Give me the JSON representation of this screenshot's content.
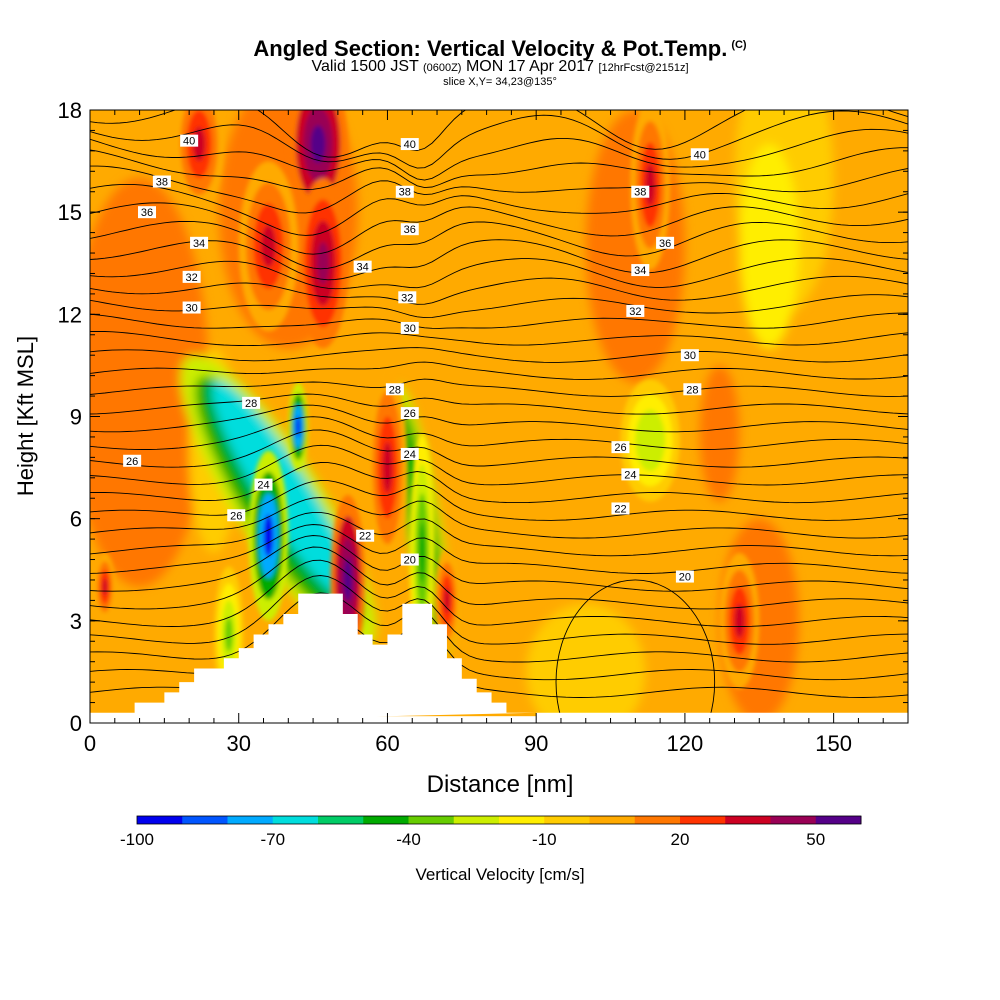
{
  "title": "Angled Section: Vertical Velocity & Pot.Temp.",
  "copyright": "(C)",
  "subtitle": {
    "valid": "Valid 1500 JST",
    "utc": "(0600Z)",
    "date": "MON 17 Apr 2017",
    "fcst": "[12hrFcst@2151z]"
  },
  "slice": "slice X,Y= 34,23@135°",
  "colorbar_label": "Vertical Velocity [cm/s]",
  "colorbar_ticks": [
    "-100",
    "-70",
    "-40",
    "-10",
    "20",
    "50"
  ],
  "colors": {
    "bins": [
      "#0000ee",
      "#0055ff",
      "#00aaff",
      "#00dddd",
      "#00cc66",
      "#00aa00",
      "#66cc00",
      "#ccee00",
      "#ffee00",
      "#ffcc00",
      "#ffaa00",
      "#ff7700",
      "#ff3300",
      "#cc0022",
      "#990055",
      "#550088"
    ]
  },
  "chart_data": {
    "type": "heatmap",
    "title": "Angled Section: Vertical Velocity & Pot.Temp.",
    "xlabel": "Distance [nm]",
    "ylabel": "Height [Kft MSL]",
    "xlim": [
      0,
      165
    ],
    "ylim": [
      0,
      18
    ],
    "xticks": [
      "0",
      "30",
      "60",
      "90",
      "120",
      "150"
    ],
    "yticks": [
      "0",
      "3",
      "6",
      "9",
      "12",
      "15",
      "18"
    ],
    "colorbar": {
      "label": "Vertical Velocity [cm/s]",
      "min": -100,
      "max": 60,
      "step": 10,
      "tick_labels": [
        "-100",
        "-70",
        "-40",
        "-10",
        "20",
        "50"
      ]
    },
    "updrafts": [
      {
        "x": 46,
        "y": 17,
        "w": 6,
        "h": 2.2,
        "value": 60
      },
      {
        "x": 47,
        "y": 13.5,
        "w": 5,
        "h": 2.5,
        "value": 40
      },
      {
        "x": 52,
        "y": 4.2,
        "w": 3.5,
        "h": 2.5,
        "value": 60
      },
      {
        "x": 60,
        "y": 7.5,
        "w": 4,
        "h": 3,
        "value": 30
      },
      {
        "x": 72,
        "y": 3.6,
        "w": 2.5,
        "h": 1.5,
        "value": 30
      },
      {
        "x": 113,
        "y": 15.8,
        "w": 4,
        "h": 2.5,
        "value": 30
      },
      {
        "x": 131,
        "y": 3,
        "w": 4,
        "h": 2,
        "value": 30
      },
      {
        "x": 22,
        "y": 17,
        "w": 5,
        "h": 2,
        "value": 30
      },
      {
        "x": 36,
        "y": 14,
        "w": 6,
        "h": 2.5,
        "value": 30
      },
      {
        "x": 3,
        "y": 4,
        "w": 2,
        "h": 1,
        "value": 30
      }
    ],
    "downdrafts": [
      {
        "x": 36,
        "y": 5.5,
        "w": 4,
        "h": 2.5,
        "value": -100
      },
      {
        "x": 42,
        "y": 8.7,
        "w": 2,
        "h": 1.3,
        "value": -100
      },
      {
        "x": 67,
        "y": 5,
        "w": 2.5,
        "h": 3.5,
        "value": -50
      },
      {
        "x": 113,
        "y": 8.3,
        "w": 6,
        "h": 1.8,
        "value": -30
      },
      {
        "x": 28,
        "y": 2.6,
        "w": 3,
        "h": 2,
        "value": -40
      }
    ],
    "contour_labels": [
      {
        "x": 20,
        "y": 17.1,
        "text": "40"
      },
      {
        "x": 64.5,
        "y": 17.0,
        "text": "40"
      },
      {
        "x": 123,
        "y": 16.7,
        "text": "40"
      },
      {
        "x": 14.5,
        "y": 15.9,
        "text": "38"
      },
      {
        "x": 63.5,
        "y": 15.6,
        "text": "38"
      },
      {
        "x": 111,
        "y": 15.6,
        "text": "38"
      },
      {
        "x": 11.5,
        "y": 15.0,
        "text": "36"
      },
      {
        "x": 64.5,
        "y": 14.5,
        "text": "36"
      },
      {
        "x": 116,
        "y": 14.1,
        "text": "36"
      },
      {
        "x": 22,
        "y": 14.1,
        "text": "34"
      },
      {
        "x": 55,
        "y": 13.4,
        "text": "34"
      },
      {
        "x": 111,
        "y": 13.3,
        "text": "34"
      },
      {
        "x": 20.5,
        "y": 13.1,
        "text": "32"
      },
      {
        "x": 64,
        "y": 12.5,
        "text": "32"
      },
      {
        "x": 110,
        "y": 12.1,
        "text": "32"
      },
      {
        "x": 20.5,
        "y": 12.2,
        "text": "30"
      },
      {
        "x": 64.5,
        "y": 11.6,
        "text": "30"
      },
      {
        "x": 121,
        "y": 10.8,
        "text": "30"
      },
      {
        "x": 61.5,
        "y": 9.8,
        "text": "28"
      },
      {
        "x": 121.5,
        "y": 9.8,
        "text": "28"
      },
      {
        "x": 32.5,
        "y": 9.4,
        "text": "28"
      },
      {
        "x": 64.5,
        "y": 9.1,
        "text": "26"
      },
      {
        "x": 8.5,
        "y": 7.7,
        "text": "26"
      },
      {
        "x": 107,
        "y": 8.1,
        "text": "26"
      },
      {
        "x": 64.5,
        "y": 7.9,
        "text": "24"
      },
      {
        "x": 35,
        "y": 7.0,
        "text": "24"
      },
      {
        "x": 109,
        "y": 7.3,
        "text": "24"
      },
      {
        "x": 29.5,
        "y": 6.1,
        "text": "26"
      },
      {
        "x": 55.5,
        "y": 5.5,
        "text": "22"
      },
      {
        "x": 107,
        "y": 6.3,
        "text": "22"
      },
      {
        "x": 64.5,
        "y": 4.8,
        "text": "20"
      },
      {
        "x": 120,
        "y": 4.3,
        "text": "20"
      }
    ],
    "terrain": [
      [
        0,
        0.3
      ],
      [
        9,
        0.3
      ],
      [
        9,
        0.6
      ],
      [
        15,
        0.6
      ],
      [
        15,
        0.9
      ],
      [
        18,
        0.9
      ],
      [
        18,
        1.2
      ],
      [
        21,
        1.2
      ],
      [
        21,
        1.6
      ],
      [
        27,
        1.6
      ],
      [
        27,
        1.9
      ],
      [
        30,
        1.9
      ],
      [
        30,
        2.2
      ],
      [
        33,
        2.2
      ],
      [
        33,
        2.6
      ],
      [
        36,
        2.6
      ],
      [
        36,
        2.9
      ],
      [
        39,
        2.9
      ],
      [
        39,
        3.2
      ],
      [
        42,
        3.2
      ],
      [
        42,
        3.8
      ],
      [
        51,
        3.8
      ],
      [
        51,
        3.2
      ],
      [
        54,
        3.2
      ],
      [
        54,
        2.6
      ],
      [
        57,
        2.6
      ],
      [
        57,
        2.3
      ],
      [
        60,
        2.3
      ],
      [
        60,
        2.6
      ],
      [
        63,
        2.6
      ],
      [
        63,
        3.5
      ],
      [
        69,
        3.5
      ],
      [
        69,
        2.9
      ],
      [
        72,
        2.9
      ],
      [
        72,
        1.9
      ],
      [
        75,
        1.9
      ],
      [
        75,
        1.3
      ],
      [
        78,
        1.3
      ],
      [
        78,
        0.9
      ],
      [
        81,
        0.9
      ],
      [
        81,
        0.6
      ],
      [
        84,
        0.6
      ],
      [
        84,
        0.3
      ],
      [
        90,
        0.3
      ],
      [
        90,
        0
      ]
    ]
  }
}
